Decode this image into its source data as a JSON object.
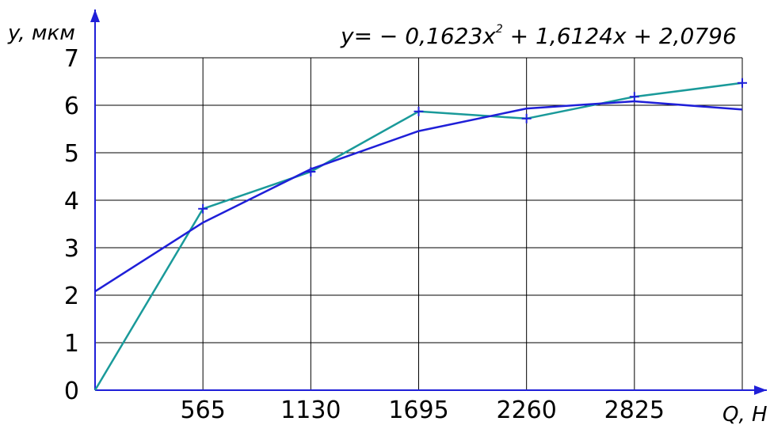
{
  "chart_data": {
    "type": "line",
    "xlabel": "Q, Н",
    "ylabel": "y, мкм",
    "equation": {
      "prefix": "y= − 0,1623",
      "var1": "x",
      "power": "2",
      "middle": " + 1,6124",
      "var2": "x",
      "suffix": " + 2,0796"
    },
    "x_ticks": [
      "565",
      "1130",
      "1695",
      "2260",
      "2825"
    ],
    "y_ticks": [
      "0",
      "1",
      "2",
      "3",
      "4",
      "5",
      "6",
      "7"
    ],
    "xlim": [
      0,
      3390
    ],
    "ylim": [
      0,
      7
    ],
    "grid": true,
    "series": [
      {
        "color": "#1a9a9a",
        "marker": "+",
        "x": [
          0,
          565,
          1130,
          1695,
          2260,
          2825,
          3390
        ],
        "y": [
          0,
          3.82,
          4.6,
          5.87,
          5.72,
          6.18,
          6.47
        ]
      },
      {
        "color": "#1f1fd8",
        "marker": "none",
        "x": [
          0,
          565,
          1130,
          1695,
          2260,
          2825,
          3390
        ],
        "y": [
          2.0796,
          3.5297,
          4.6551,
          5.4559,
          5.9321,
          6.0837,
          5.9107
        ]
      }
    ]
  }
}
